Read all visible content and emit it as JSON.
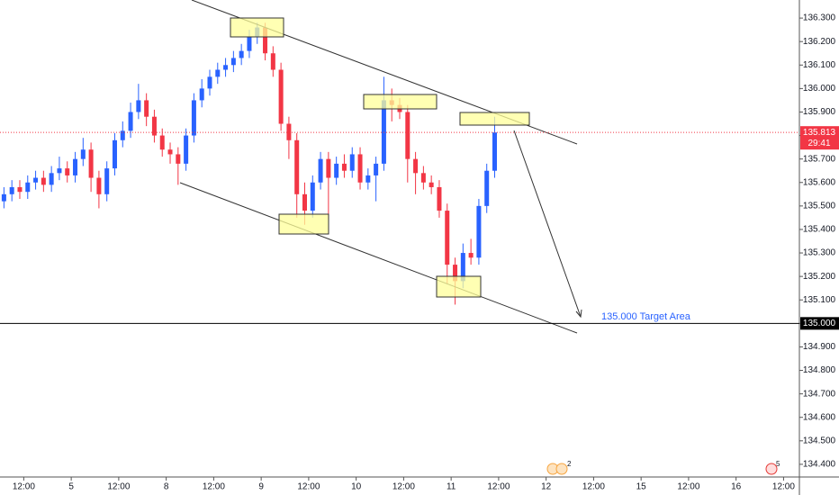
{
  "chart_data": {
    "type": "candlestick",
    "x": [
      -5,
      -3,
      -1,
      1,
      3,
      5,
      7,
      9,
      11,
      13,
      15,
      17,
      19,
      21,
      23,
      25,
      27,
      29,
      31,
      33,
      35,
      37,
      39,
      41,
      43,
      45,
      47,
      49,
      51,
      53,
      55,
      57,
      59,
      61,
      63,
      65,
      67,
      69,
      71,
      73,
      75,
      77,
      79,
      81,
      83,
      85,
      87,
      89,
      91,
      93,
      95,
      97,
      99,
      101,
      103,
      105,
      107,
      109,
      111,
      113,
      115,
      117,
      119
    ],
    "open": [
      135.52,
      135.55,
      135.58,
      135.56,
      135.6,
      135.62,
      135.59,
      135.64,
      135.66,
      135.63,
      135.7,
      135.74,
      135.62,
      135.55,
      135.66,
      135.78,
      135.82,
      135.9,
      135.95,
      135.88,
      135.8,
      135.74,
      135.72,
      135.68,
      135.8,
      135.95,
      136.0,
      136.05,
      136.08,
      136.1,
      136.13,
      136.16,
      136.22,
      136.26,
      136.15,
      136.08,
      135.85,
      135.78,
      135.55,
      135.48,
      135.6,
      135.7,
      135.62,
      135.68,
      135.65,
      135.72,
      135.6,
      135.63,
      135.68,
      135.95,
      135.93,
      135.9,
      135.7,
      135.64,
      135.6,
      135.58,
      135.48,
      135.25,
      135.18,
      135.3,
      135.28,
      135.5,
      135.65
    ],
    "high": [
      135.58,
      135.61,
      135.61,
      135.63,
      135.65,
      135.65,
      135.67,
      135.71,
      135.69,
      135.73,
      135.79,
      135.77,
      135.65,
      135.69,
      135.81,
      135.86,
      135.94,
      136.02,
      135.98,
      135.91,
      135.83,
      135.77,
      135.75,
      135.83,
      135.98,
      136.04,
      136.08,
      136.11,
      136.13,
      136.16,
      136.19,
      136.25,
      136.28,
      136.28,
      136.18,
      136.11,
      135.88,
      135.81,
      135.6,
      135.63,
      135.73,
      135.73,
      135.71,
      135.72,
      135.75,
      135.75,
      135.66,
      135.71,
      136.05,
      136.0,
      135.96,
      135.93,
      135.73,
      135.67,
      135.63,
      135.61,
      135.51,
      135.28,
      135.34,
      135.36,
      135.53,
      135.68,
      135.88
    ],
    "low": [
      135.49,
      135.52,
      135.53,
      135.53,
      135.57,
      135.56,
      135.56,
      135.61,
      135.6,
      135.6,
      135.67,
      135.56,
      135.49,
      135.52,
      135.63,
      135.75,
      135.79,
      135.87,
      135.84,
      135.77,
      135.71,
      135.68,
      135.59,
      135.65,
      135.77,
      135.92,
      135.97,
      136.02,
      136.05,
      136.07,
      136.1,
      136.13,
      136.19,
      136.12,
      136.05,
      135.82,
      135.7,
      135.45,
      135.42,
      135.45,
      135.57,
      135.44,
      135.59,
      135.62,
      135.62,
      135.57,
      135.57,
      135.52,
      135.65,
      135.86,
      135.87,
      135.6,
      135.55,
      135.57,
      135.55,
      135.45,
      135.17,
      135.08,
      135.15,
      135.25,
      135.25,
      135.47,
      135.62
    ],
    "close": [
      135.55,
      135.58,
      135.56,
      135.6,
      135.62,
      135.59,
      135.64,
      135.66,
      135.63,
      135.7,
      135.74,
      135.62,
      135.55,
      135.66,
      135.78,
      135.82,
      135.9,
      135.95,
      135.88,
      135.8,
      135.74,
      135.72,
      135.68,
      135.8,
      135.95,
      136.0,
      136.05,
      136.08,
      136.1,
      136.13,
      136.16,
      136.22,
      136.26,
      136.15,
      136.08,
      135.85,
      135.78,
      135.55,
      135.48,
      135.6,
      135.7,
      135.62,
      135.68,
      135.65,
      135.72,
      135.6,
      135.63,
      135.68,
      135.95,
      135.93,
      135.9,
      135.7,
      135.64,
      135.6,
      135.58,
      135.48,
      135.25,
      135.18,
      135.3,
      135.28,
      135.5,
      135.65,
      135.813
    ],
    "up_color": "#2962ff",
    "down_color": "#f23645",
    "xlim": [
      -6,
      196
    ],
    "xticks": [
      {
        "value": 0,
        "label": "12:00"
      },
      {
        "value": 12,
        "label": "5"
      },
      {
        "value": 24,
        "label": "12:00"
      },
      {
        "value": 36,
        "label": "8"
      },
      {
        "value": 48,
        "label": "12:00"
      },
      {
        "value": 60,
        "label": "9"
      },
      {
        "value": 72,
        "label": "12:00"
      },
      {
        "value": 84,
        "label": "10"
      },
      {
        "value": 96,
        "label": "12:00"
      },
      {
        "value": 108,
        "label": "11"
      },
      {
        "value": 120,
        "label": "12:00"
      },
      {
        "value": 132,
        "label": "12"
      },
      {
        "value": 144,
        "label": "12:00"
      },
      {
        "value": 156,
        "label": "15"
      },
      {
        "value": 168,
        "label": "12:00"
      },
      {
        "value": 180,
        "label": "16"
      },
      {
        "value": 192,
        "label": "12:00"
      }
    ],
    "ylim": [
      134.346,
      136.377
    ],
    "yticks": [
      {
        "value": 134.4,
        "label": "134.400"
      },
      {
        "value": 134.5,
        "label": "134.500"
      },
      {
        "value": 134.6,
        "label": "134.600"
      },
      {
        "value": 134.7,
        "label": "134.700"
      },
      {
        "value": 134.8,
        "label": "134.800"
      },
      {
        "value": 134.9,
        "label": "134.900"
      },
      {
        "value": 135.0,
        "label": "135.000"
      },
      {
        "value": 135.1,
        "label": "135.100"
      },
      {
        "value": 135.2,
        "label": "135.200"
      },
      {
        "value": 135.3,
        "label": "135.300"
      },
      {
        "value": 135.4,
        "label": "135.400"
      },
      {
        "value": 135.5,
        "label": "135.500"
      },
      {
        "value": 135.6,
        "label": "135.600"
      },
      {
        "value": 135.7,
        "label": "135.700"
      },
      {
        "value": 135.8,
        "label": "135.800"
      },
      {
        "value": 135.9,
        "label": "135.900"
      },
      {
        "value": 136.0,
        "label": "136.000"
      },
      {
        "value": 136.1,
        "label": "136.100"
      },
      {
        "value": 136.2,
        "label": "136.200"
      },
      {
        "value": 136.3,
        "label": "136.300"
      }
    ],
    "grid": false,
    "last_price": {
      "value": 135.813,
      "label": "135.813"
    },
    "countdown": "29:41",
    "target_line": {
      "value": 135.0,
      "label": "135.000"
    },
    "annotation": "135.000 Target Area",
    "event_badges": [
      "2",
      "5"
    ]
  }
}
